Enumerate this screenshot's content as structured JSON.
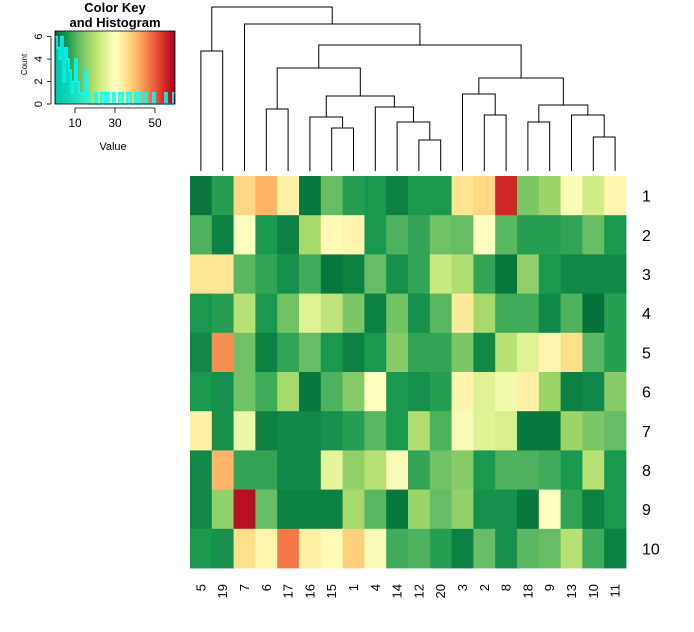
{
  "chart_data": [
    {
      "type": "histogram",
      "title": "Color Key\nand Histogram",
      "xlabel": "Value",
      "ylabel": "Count",
      "x_ticks": [
        "10",
        "30",
        "50"
      ],
      "y_ticks": [
        "0",
        "2",
        "4",
        "6"
      ],
      "x_ticks_values": [
        10,
        30,
        50
      ],
      "y_ticks_values": [
        0,
        2,
        4,
        6
      ],
      "xlim": [
        0,
        60
      ],
      "ylim": [
        0,
        6.5
      ],
      "palette": [
        "#006837",
        "#1A9850",
        "#66BD63",
        "#A6D96A",
        "#D9EF8B",
        "#FFFFBF",
        "#FEE08B",
        "#FDAE61",
        "#F46D43",
        "#D73027",
        "#A50026"
      ],
      "trace_color": "#00FFFF",
      "trace_x": [
        1,
        2,
        3,
        4,
        5,
        6,
        7,
        8,
        9,
        10,
        11,
        12,
        13,
        14,
        15,
        16,
        17,
        18,
        19,
        20,
        21,
        22,
        23,
        24,
        25,
        26,
        27,
        28,
        29,
        30,
        31,
        32,
        33,
        34,
        35,
        36,
        37,
        38,
        39,
        40,
        41,
        42,
        43,
        44,
        45,
        46,
        47,
        48,
        49,
        50,
        51,
        52,
        53,
        54,
        55,
        56,
        57,
        58,
        59,
        60
      ],
      "trace_counts": [
        6,
        5,
        4,
        6,
        2,
        5,
        4,
        3,
        1,
        2,
        4,
        2,
        1,
        1,
        1,
        3,
        1,
        0,
        0,
        0,
        1,
        0,
        0,
        1,
        1,
        0,
        1,
        0,
        0,
        1,
        0,
        0,
        1,
        1,
        0,
        0,
        1,
        1,
        0,
        0,
        1,
        0,
        1,
        0,
        0,
        1,
        0,
        0,
        0,
        1,
        0,
        0,
        0,
        0,
        0,
        1,
        0,
        0,
        0,
        1
      ]
    },
    {
      "type": "heatmap",
      "columns": [
        "5",
        "19",
        "7",
        "6",
        "17",
        "16",
        "15",
        "1",
        "4",
        "14",
        "12",
        "20",
        "3",
        "2",
        "8",
        "18",
        "9",
        "13",
        "10",
        "11"
      ],
      "rows": [
        "1",
        "2",
        "3",
        "4",
        "5",
        "6",
        "7",
        "8",
        "9",
        "10"
      ],
      "value_range": [
        0,
        60
      ],
      "values": [
        [
          2,
          7,
          37,
          41,
          33,
          2,
          12,
          7,
          6,
          3,
          6,
          6,
          35,
          37,
          55,
          14,
          17,
          29,
          23,
          32
        ],
        [
          10,
          3,
          30,
          6,
          3,
          18,
          31,
          32,
          6,
          10,
          8,
          13,
          12,
          30,
          11,
          7,
          7,
          8,
          12,
          6
        ],
        [
          35,
          35,
          11,
          8,
          5,
          9,
          2,
          3,
          12,
          5,
          8,
          22,
          19,
          8,
          2,
          16,
          6,
          4,
          4,
          4
        ],
        [
          6,
          7,
          20,
          6,
          13,
          25,
          21,
          14,
          3,
          13,
          5,
          11,
          34,
          18,
          9,
          9,
          4,
          10,
          1,
          7
        ],
        [
          4,
          45,
          13,
          3,
          8,
          12,
          6,
          3,
          6,
          15,
          8,
          8,
          14,
          4,
          20,
          25,
          32,
          36,
          11,
          7
        ],
        [
          6,
          5,
          13,
          9,
          18,
          2,
          10,
          15,
          30,
          6,
          5,
          7,
          32,
          25,
          28,
          33,
          17,
          3,
          4,
          15
        ],
        [
          33,
          5,
          27,
          3,
          4,
          4,
          5,
          7,
          11,
          6,
          19,
          10,
          29,
          25,
          24,
          2,
          2,
          17,
          14,
          12
        ],
        [
          4,
          41,
          8,
          8,
          4,
          4,
          26,
          16,
          20,
          29,
          8,
          13,
          15,
          6,
          10,
          10,
          9,
          6,
          20,
          6
        ],
        [
          4,
          16,
          58,
          12,
          3,
          3,
          3,
          18,
          11,
          2,
          17,
          12,
          16,
          5,
          5,
          2,
          30,
          8,
          3,
          6
        ],
        [
          6,
          5,
          36,
          32,
          47,
          33,
          31,
          38,
          29,
          9,
          10,
          7,
          3,
          12,
          5,
          11,
          12,
          20,
          9,
          3
        ]
      ]
    }
  ]
}
